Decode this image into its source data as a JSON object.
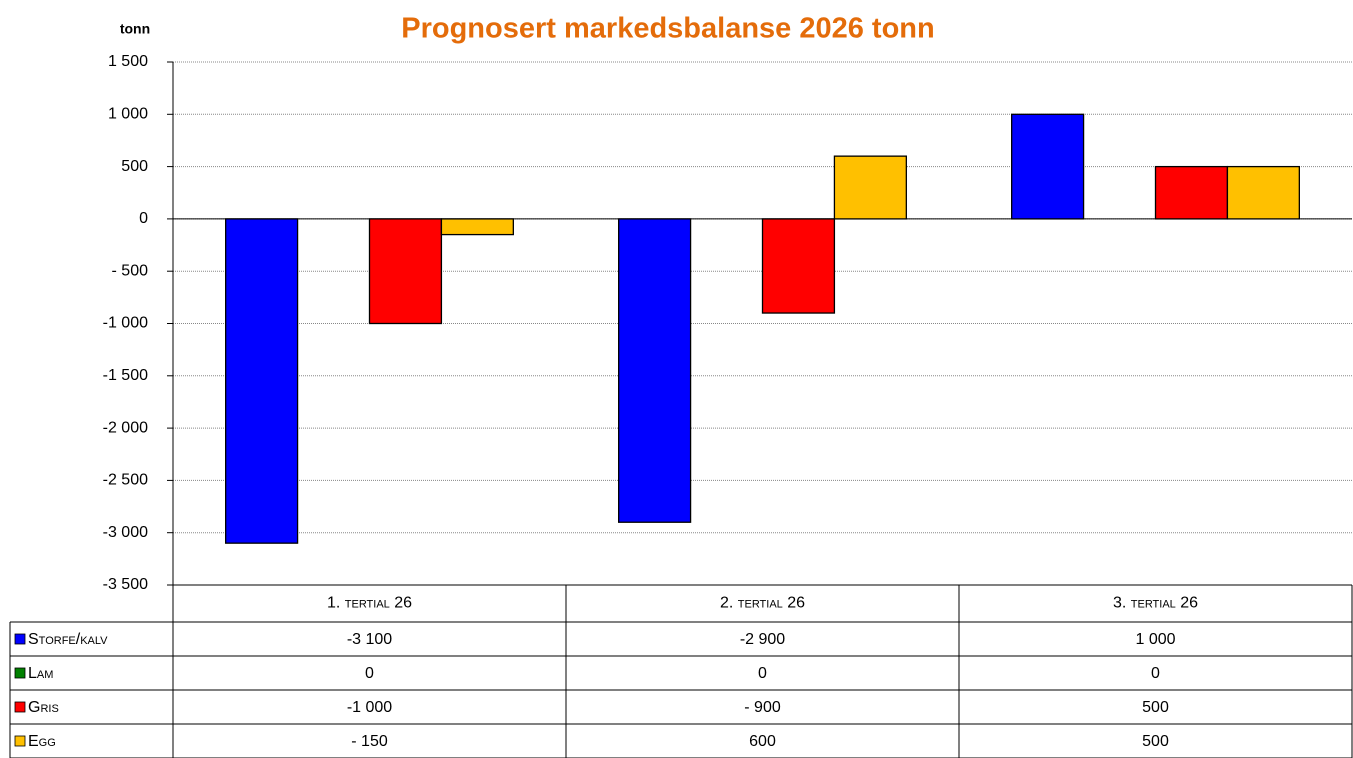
{
  "chart_data": {
    "type": "bar",
    "title": "Prognosert markedsbalanse 2026 tonn",
    "y_label": "tonn",
    "categories": [
      "1. tertial 26",
      "2. tertial 26",
      "3. tertial 26"
    ],
    "series": [
      {
        "name": "Storfe/kalv",
        "color": "#0000ff",
        "values": [
          -3100,
          -2900,
          1000
        ],
        "value_labels": [
          "-3 100",
          "-2 900",
          "1 000"
        ]
      },
      {
        "name": "Lam",
        "color": "#008000",
        "values": [
          0,
          0,
          0
        ],
        "value_labels": [
          "0",
          "0",
          "0"
        ]
      },
      {
        "name": "Gris",
        "color": "#ff0000",
        "values": [
          -1000,
          -900,
          500
        ],
        "value_labels": [
          "-1 000",
          "- 900",
          "500"
        ]
      },
      {
        "name": "Egg",
        "color": "#ffc000",
        "values": [
          -150,
          600,
          500
        ],
        "value_labels": [
          "- 150",
          "600",
          "500"
        ]
      }
    ],
    "ylim": [
      -3500,
      1500
    ],
    "yticks": [
      {
        "value": 1500,
        "label": "1 500"
      },
      {
        "value": 1000,
        "label": "1 000"
      },
      500,
      0,
      {
        "value": -500,
        "label": "- 500"
      },
      {
        "value": -1000,
        "label": "-1 000"
      },
      {
        "value": -1500,
        "label": "-1 500"
      },
      {
        "value": -2000,
        "label": "-2 000"
      },
      {
        "value": -2500,
        "label": "-2 500"
      },
      {
        "value": -3000,
        "label": "-3 000"
      },
      {
        "value": -3500,
        "label": "-3 500"
      }
    ],
    "grid": true
  }
}
